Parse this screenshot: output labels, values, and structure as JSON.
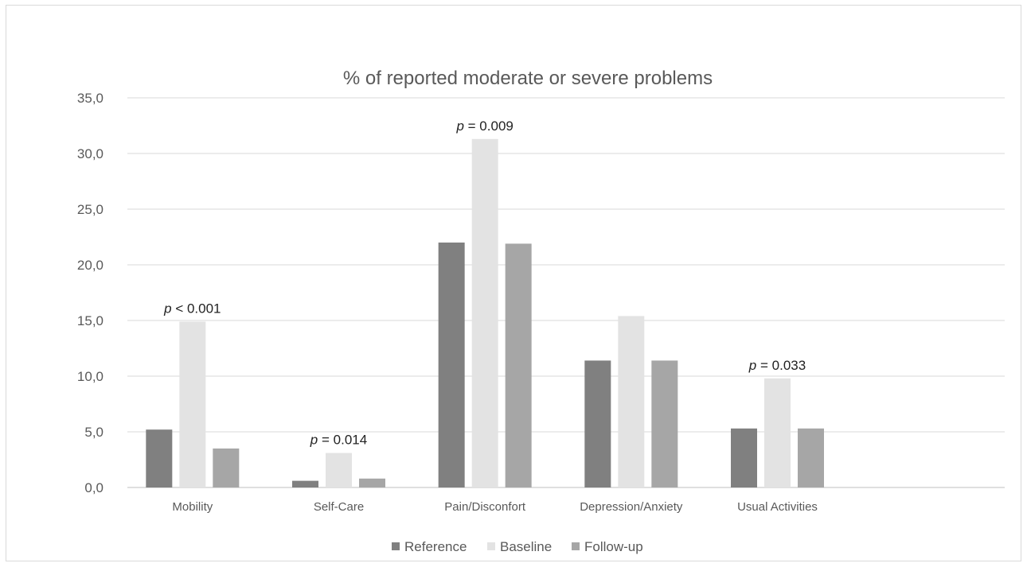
{
  "chart_data": {
    "type": "bar",
    "title": "% of reported moderate or severe problems",
    "xlabel": "",
    "ylabel": "",
    "ylim": [
      0,
      35
    ],
    "yticks": [
      "0,0",
      "5,0",
      "10,0",
      "15,0",
      "20,0",
      "25,0",
      "30,0",
      "35,0"
    ],
    "categories": [
      "Mobility",
      "Self-Care",
      "Pain/Disconfort",
      "Depression/Anxiety",
      "Usual Activities"
    ],
    "series": [
      {
        "name": "Reference",
        "color": "#808080",
        "values": [
          5.2,
          0.6,
          22.0,
          11.4,
          5.3
        ]
      },
      {
        "name": "Baseline",
        "color": "#e3e3e3",
        "values": [
          14.9,
          3.1,
          31.3,
          15.4,
          9.8
        ]
      },
      {
        "name": "Follow-up",
        "color": "#a6a6a6",
        "values": [
          3.5,
          0.8,
          21.9,
          11.4,
          5.3
        ]
      }
    ],
    "annotations": [
      {
        "category": "Mobility",
        "p_symbol": "p",
        "rest": " < 0.001",
        "y": 14.9
      },
      {
        "category": "Self-Care",
        "p_symbol": "p",
        "rest": " = 0.014",
        "y": 3.1
      },
      {
        "category": "Pain/Disconfort",
        "p_symbol": "p",
        "rest": " = 0.009",
        "y": 31.3
      },
      {
        "category": "Usual Activities",
        "p_symbol": "p",
        "rest": " = 0.033",
        "y": 9.8
      }
    ],
    "grid": true,
    "legend": "bottom"
  }
}
